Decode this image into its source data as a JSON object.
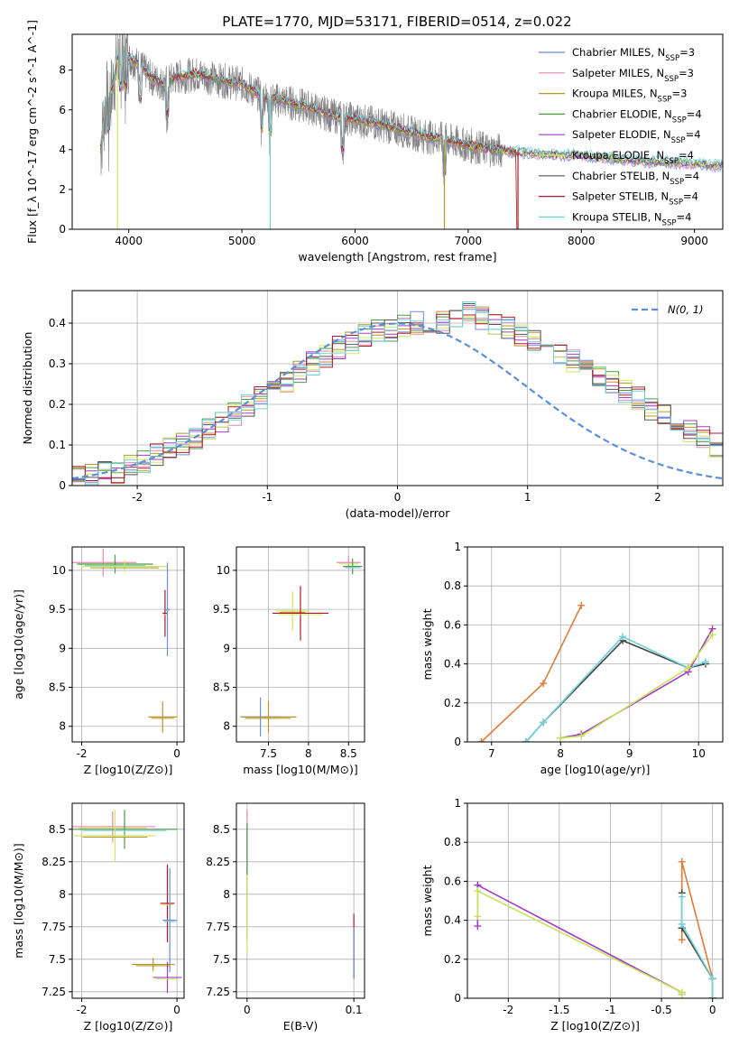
{
  "figure": {
    "title": "PLATE=1770, MJD=53171, FIBERID=0514, z=0.022"
  },
  "colors": {
    "data": "#7f7f7f",
    "models": [
      "#6b8ed6",
      "#e887b0",
      "#b8952a",
      "#4a9a4a",
      "#a43cc2",
      "#cfe85a",
      "#555555",
      "#b2182b",
      "#6fd2d8"
    ],
    "mean": "#4a9a4a",
    "gauss": "#5b8fd9",
    "weight_a": "#e07b39",
    "weight_b": "#444444",
    "weight_c": "#6fd2d8",
    "weight_d": "#a43cc2",
    "weight_e": "#c7e35a"
  },
  "chart_data": [
    {
      "id": "spectrum",
      "type": "line",
      "title": "PLATE=1770, MJD=53171, FIBERID=0514, z=0.022",
      "xlabel": "wavelength [Angstrom, rest frame]",
      "ylabel": "Flux [f_λ 10^-17 erg cm^-2 s^-1 A^-1]",
      "xlim": [
        3500,
        9250
      ],
      "ylim": [
        0,
        9.8
      ],
      "xticks": [
        4000,
        5000,
        6000,
        7000,
        8000,
        9000
      ],
      "yticks": [
        0,
        2,
        4,
        6,
        8
      ],
      "legend_position": "top-right",
      "legend": [
        {
          "text": "Chabrier MILES, N",
          "sub": "SSP",
          "n": "=3"
        },
        {
          "text": "Salpeter MILES, N",
          "sub": "SSP",
          "n": "=3"
        },
        {
          "text": "Kroupa MILES, N",
          "sub": "SSP",
          "n": "=3"
        },
        {
          "text": "Chabrier ELODIE, N",
          "sub": "SSP",
          "n": "=4"
        },
        {
          "text": "Salpeter ELODIE, N",
          "sub": "SSP",
          "n": "=4"
        },
        {
          "text": "Kroupa ELODIE, N",
          "sub": "SSP",
          "n": "=4"
        },
        {
          "text": "Chabrier STELIB, N",
          "sub": "SSP",
          "n": "=4"
        },
        {
          "text": "Salpeter STELIB, N",
          "sub": "SSP",
          "n": "=4"
        },
        {
          "text": "Kroupa STELIB, N",
          "sub": "SSP",
          "n": "=4"
        }
      ],
      "model_envelope": {
        "x": [
          3750,
          3800,
          3850,
          3900,
          3950,
          4000,
          4100,
          4200,
          4300,
          4400,
          4600,
          4800,
          5000,
          5200,
          5400,
          5600,
          5800,
          6000,
          6200,
          6400,
          6600,
          6800,
          7000,
          7200,
          7400,
          7600,
          7800,
          8000,
          8200,
          8400,
          8600,
          8800,
          9000,
          9200
        ],
        "y": [
          4.0,
          6.5,
          6.9,
          8.5,
          8.9,
          8.6,
          8.2,
          7.6,
          7.3,
          7.6,
          7.8,
          7.5,
          7.3,
          6.6,
          6.4,
          6.1,
          5.7,
          5.5,
          5.3,
          5.0,
          4.7,
          4.5,
          4.2,
          4.0,
          3.9,
          3.8,
          3.75,
          3.7,
          3.6,
          3.5,
          3.4,
          3.35,
          3.3,
          3.2
        ]
      },
      "absorption_x": [
        3820,
        3930,
        3970,
        4100,
        4340,
        5175,
        5250,
        5890,
        6790
      ],
      "data_range": [
        3750,
        7300
      ]
    },
    {
      "id": "residual-histogram",
      "type": "line",
      "xlabel": "(data-model)/error",
      "ylabel": "Normed distribution",
      "xlim": [
        -2.5,
        2.5
      ],
      "ylim": [
        0,
        0.48
      ],
      "xticks": [
        -2,
        -1,
        0,
        1,
        2
      ],
      "yticks": [
        0.0,
        0.1,
        0.2,
        0.3,
        0.4
      ],
      "legend_position": "top-right",
      "legend": "N(0, 1)",
      "bins_start": -2.5,
      "bin_width": 0.1,
      "histogram": [
        0.025,
        0.03,
        0.032,
        0.035,
        0.045,
        0.06,
        0.075,
        0.09,
        0.1,
        0.12,
        0.14,
        0.16,
        0.175,
        0.195,
        0.215,
        0.235,
        0.255,
        0.28,
        0.3,
        0.32,
        0.34,
        0.35,
        0.37,
        0.38,
        0.385,
        0.395,
        0.4,
        0.4,
        0.405,
        0.41,
        0.43,
        0.41,
        0.395,
        0.385,
        0.37,
        0.36,
        0.34,
        0.33,
        0.31,
        0.285,
        0.27,
        0.255,
        0.235,
        0.215,
        0.19,
        0.17,
        0.155,
        0.135,
        0.12,
        0.1
      ]
    },
    {
      "id": "age-vs-metallicity",
      "type": "scatter",
      "xlabel": "Z [log10(Z/Z⊙)]",
      "ylabel": "age [log10(age/yr)]",
      "xlim": [
        -2.2,
        0.15
      ],
      "ylim": [
        7.8,
        10.3
      ],
      "xticks": [
        -2,
        0
      ],
      "yticks": [
        8.0,
        8.5,
        9.0,
        9.5,
        10.0
      ],
      "points": [
        {
          "x": -1.55,
          "y": 10.1,
          "xerr": 0.7,
          "yerr": 0.18
        },
        {
          "x": -1.3,
          "y": 10.08,
          "xerr": 0.8,
          "yerr": 0.12
        },
        {
          "x": -1.1,
          "y": 10.05,
          "xerr": 0.9,
          "yerr": 0.08
        },
        {
          "x": -0.25,
          "y": 9.45,
          "xerr": 0.05,
          "yerr": 0.3
        },
        {
          "x": -0.2,
          "y": 9.5,
          "xerr": 0.05,
          "yerr": 0.6
        },
        {
          "x": -0.3,
          "y": 8.12,
          "xerr": 0.3,
          "yerr": 0.2
        }
      ]
    },
    {
      "id": "age-vs-mass",
      "type": "scatter",
      "xlabel": "mass [log10(M/M⊙)]",
      "ylabel": "",
      "xlim": [
        7.1,
        8.7
      ],
      "ylim": [
        7.8,
        10.3
      ],
      "xticks": [
        7.5,
        8.0,
        8.5
      ],
      "yticks": [
        8.0,
        8.5,
        9.0,
        9.5,
        10.0
      ],
      "points": [
        {
          "x": 8.5,
          "y": 10.1,
          "xerr": 0.15,
          "yerr": 0.08
        },
        {
          "x": 8.55,
          "y": 10.05,
          "xerr": 0.12,
          "yerr": 0.1
        },
        {
          "x": 7.8,
          "y": 9.48,
          "xerr": 0.2,
          "yerr": 0.25
        },
        {
          "x": 7.9,
          "y": 9.45,
          "xerr": 0.35,
          "yerr": 0.35
        },
        {
          "x": 7.4,
          "y": 8.12,
          "xerr": 0.25,
          "yerr": 0.25
        },
        {
          "x": 7.5,
          "y": 8.12,
          "xerr": 0.35,
          "yerr": 0.2
        }
      ]
    },
    {
      "id": "mass-weight-vs-age",
      "type": "line",
      "xlabel": "age [log10(age/yr)]",
      "ylabel": "mass weight",
      "xlim": [
        6.65,
        10.35
      ],
      "ylim": [
        0,
        1.0
      ],
      "xticks": [
        7,
        8,
        9,
        10
      ],
      "yticks": [
        0.0,
        0.2,
        0.4,
        0.6,
        0.8,
        1.0
      ],
      "series": [
        {
          "x": [
            6.85,
            7.75,
            8.3
          ],
          "y": [
            0.0,
            0.3,
            0.7
          ]
        },
        {
          "x": [
            7.5,
            7.75,
            8.9,
            9.85,
            10.1
          ],
          "y": [
            0.0,
            0.1,
            0.52,
            0.38,
            0.4
          ]
        },
        {
          "x": [
            7.5,
            7.75,
            8.9,
            9.85,
            10.1
          ],
          "y": [
            0.0,
            0.1,
            0.54,
            0.38,
            0.41
          ]
        },
        {
          "x": [
            8.0,
            8.3,
            9.85,
            10.2
          ],
          "y": [
            0.02,
            0.04,
            0.36,
            0.58
          ]
        },
        {
          "x": [
            8.0,
            8.3,
            9.85,
            10.2
          ],
          "y": [
            0.02,
            0.03,
            0.38,
            0.55
          ]
        }
      ]
    },
    {
      "id": "mass-vs-metallicity",
      "type": "scatter",
      "xlabel": "Z [log10(Z/Z⊙)]",
      "ylabel": "mass [log10(M/M⊙)]",
      "xlim": [
        -2.2,
        0.15
      ],
      "ylim": [
        7.2,
        8.7
      ],
      "xticks": [
        -2,
        0
      ],
      "yticks": [
        7.25,
        7.5,
        7.75,
        8.0,
        8.25,
        8.5
      ],
      "points": [
        {
          "x": -1.35,
          "y": 8.52,
          "xerr": 0.9,
          "yerr": 0.12
        },
        {
          "x": -1.1,
          "y": 8.5,
          "xerr": 1.1,
          "yerr": 0.15
        },
        {
          "x": -1.3,
          "y": 8.45,
          "xerr": 0.85,
          "yerr": 0.2
        },
        {
          "x": -0.2,
          "y": 7.93,
          "xerr": 0.15,
          "yerr": 0.3
        },
        {
          "x": -0.15,
          "y": 7.8,
          "xerr": 0.15,
          "yerr": 0.4
        },
        {
          "x": -0.5,
          "y": 7.46,
          "xerr": 0.45,
          "yerr": 0.05
        },
        {
          "x": -0.2,
          "y": 7.36,
          "xerr": 0.3,
          "yerr": 0.12
        }
      ]
    },
    {
      "id": "mass-vs-extinction",
      "type": "scatter",
      "xlabel": "E(B-V)",
      "ylabel": "",
      "xlim": [
        -0.01,
        0.11
      ],
      "ylim": [
        7.2,
        8.7
      ],
      "xticks": [
        0.0,
        0.1
      ],
      "yticks": [
        7.25,
        7.5,
        7.75,
        8.0,
        8.25,
        8.5
      ],
      "points": [
        {
          "x": 0.0,
          "y": 8.4,
          "xerr": 0.0,
          "yerr": 0.25
        },
        {
          "x": 0.0,
          "y": 8.1,
          "xerr": 0.0,
          "yerr": 0.45
        },
        {
          "x": 0.0,
          "y": 7.85,
          "xerr": 0.0,
          "yerr": 0.3
        },
        {
          "x": 0.1,
          "y": 7.6,
          "xerr": 0.0,
          "yerr": 0.25
        },
        {
          "x": 0.1,
          "y": 7.55,
          "xerr": 0.0,
          "yerr": 0.2
        }
      ]
    },
    {
      "id": "mass-weight-vs-metallicity",
      "type": "line",
      "xlabel": "Z [log10(Z/Z⊙)]",
      "ylabel": "mass weight",
      "xlim": [
        -2.4,
        0.1
      ],
      "ylim": [
        0,
        1.0
      ],
      "xticks": [
        -2.0,
        -1.5,
        -1.0,
        -0.5,
        0.0
      ],
      "yticks": [
        0.0,
        0.2,
        0.4,
        0.6,
        0.8,
        1.0
      ],
      "series": [
        {
          "x": [
            -0.3,
            -0.3,
            0.0,
            0.0
          ],
          "y": [
            0.3,
            0.7,
            0.1,
            0.0
          ]
        },
        {
          "x": [
            -0.3,
            -0.3,
            -0.3,
            0.0,
            0.0
          ],
          "y": [
            0.36,
            0.54,
            0.36,
            0.1,
            0.0
          ]
        },
        {
          "x": [
            -0.3,
            -0.3,
            -0.3,
            0.0,
            0.0
          ],
          "y": [
            0.38,
            0.52,
            0.38,
            0.1,
            0.0
          ]
        },
        {
          "x": [
            -2.3,
            -2.3,
            -0.3,
            -0.3
          ],
          "y": [
            0.37,
            0.58,
            0.03,
            0.02
          ]
        },
        {
          "x": [
            -2.3,
            -2.3,
            -0.3,
            -0.3
          ],
          "y": [
            0.42,
            0.55,
            0.03,
            0.02
          ]
        }
      ]
    }
  ]
}
